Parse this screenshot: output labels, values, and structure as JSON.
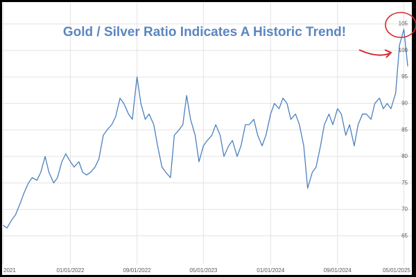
{
  "chart_data": {
    "type": "line",
    "title": "Gold / Silver Ratio Indicates A Historic Trend!",
    "x": [
      "2021-05-01",
      "2021-05-15",
      "2021-06-01",
      "2021-06-15",
      "2021-07-01",
      "2021-07-15",
      "2021-08-01",
      "2021-08-15",
      "2021-09-01",
      "2021-09-15",
      "2021-10-01",
      "2021-10-15",
      "2021-11-01",
      "2021-11-15",
      "2021-12-01",
      "2021-12-15",
      "2022-01-01",
      "2022-01-15",
      "2022-02-01",
      "2022-02-15",
      "2022-03-01",
      "2022-03-15",
      "2022-04-01",
      "2022-04-15",
      "2022-05-01",
      "2022-05-15",
      "2022-06-01",
      "2022-06-15",
      "2022-07-01",
      "2022-07-15",
      "2022-08-01",
      "2022-08-15",
      "2022-09-01",
      "2022-09-15",
      "2022-10-01",
      "2022-10-15",
      "2022-11-01",
      "2022-11-15",
      "2022-12-01",
      "2022-12-15",
      "2023-01-01",
      "2023-01-15",
      "2023-02-01",
      "2023-02-15",
      "2023-03-01",
      "2023-03-15",
      "2023-04-01",
      "2023-04-15",
      "2023-05-01",
      "2023-05-15",
      "2023-06-01",
      "2023-06-15",
      "2023-07-01",
      "2023-07-15",
      "2023-08-01",
      "2023-08-15",
      "2023-09-01",
      "2023-09-15",
      "2023-10-01",
      "2023-10-15",
      "2023-11-01",
      "2023-11-15",
      "2023-12-01",
      "2023-12-15",
      "2024-01-01",
      "2024-01-15",
      "2024-02-01",
      "2024-02-15",
      "2024-03-01",
      "2024-03-15",
      "2024-04-01",
      "2024-04-15",
      "2024-05-01",
      "2024-05-15",
      "2024-06-01",
      "2024-06-15",
      "2024-07-01",
      "2024-07-15",
      "2024-08-01",
      "2024-08-15",
      "2024-09-01",
      "2024-09-15",
      "2024-10-01",
      "2024-10-15",
      "2024-11-01",
      "2024-11-15",
      "2024-12-01",
      "2024-12-15",
      "2025-01-01",
      "2025-01-15",
      "2025-02-01",
      "2025-02-15",
      "2025-03-01",
      "2025-03-15",
      "2025-04-01",
      "2025-04-15",
      "2025-05-01",
      "2025-05-15"
    ],
    "values": [
      67,
      66.5,
      68,
      69,
      71,
      73,
      75,
      76,
      75.5,
      77,
      80,
      77,
      75,
      76,
      79,
      80.5,
      79,
      78,
      79,
      77,
      76.5,
      77,
      78,
      79.5,
      84,
      85,
      86,
      87.5,
      91,
      90,
      88,
      87,
      95,
      90,
      87,
      88,
      86,
      82,
      78,
      77,
      76,
      84,
      85,
      86,
      91.5,
      87,
      84,
      79,
      82,
      83,
      84,
      86,
      84,
      80,
      82,
      83,
      80,
      82,
      86,
      86,
      87,
      84,
      82,
      84,
      88,
      90,
      89,
      91,
      90,
      87,
      88,
      86,
      82,
      74,
      77,
      78,
      82,
      86,
      88,
      86,
      89,
      88,
      84,
      86,
      82,
      86,
      88,
      88,
      87,
      90,
      91,
      89,
      90,
      89,
      92,
      101,
      104,
      97
    ],
    "color": "#4a7fbf",
    "xlim": [
      "2021-04-27",
      "2025-05-30"
    ],
    "xticks": [
      {
        "value": "2021-05-01",
        "label": "2021"
      },
      {
        "value": "2022-01-01",
        "label": "01/01/2022"
      },
      {
        "value": "2022-09-01",
        "label": "09/01/2022"
      },
      {
        "value": "2023-05-01",
        "label": "05/01/2023"
      },
      {
        "value": "2024-01-01",
        "label": "01/01/2024"
      },
      {
        "value": "2024-09-01",
        "label": "09/01/2024"
      },
      {
        "value": "2025-05-01",
        "label": "05/01/2025"
      }
    ],
    "ylim": [
      59.6,
      109
    ],
    "yticks": [
      65,
      70,
      75,
      80,
      85,
      90,
      95,
      100,
      105
    ],
    "grid": true
  }
}
